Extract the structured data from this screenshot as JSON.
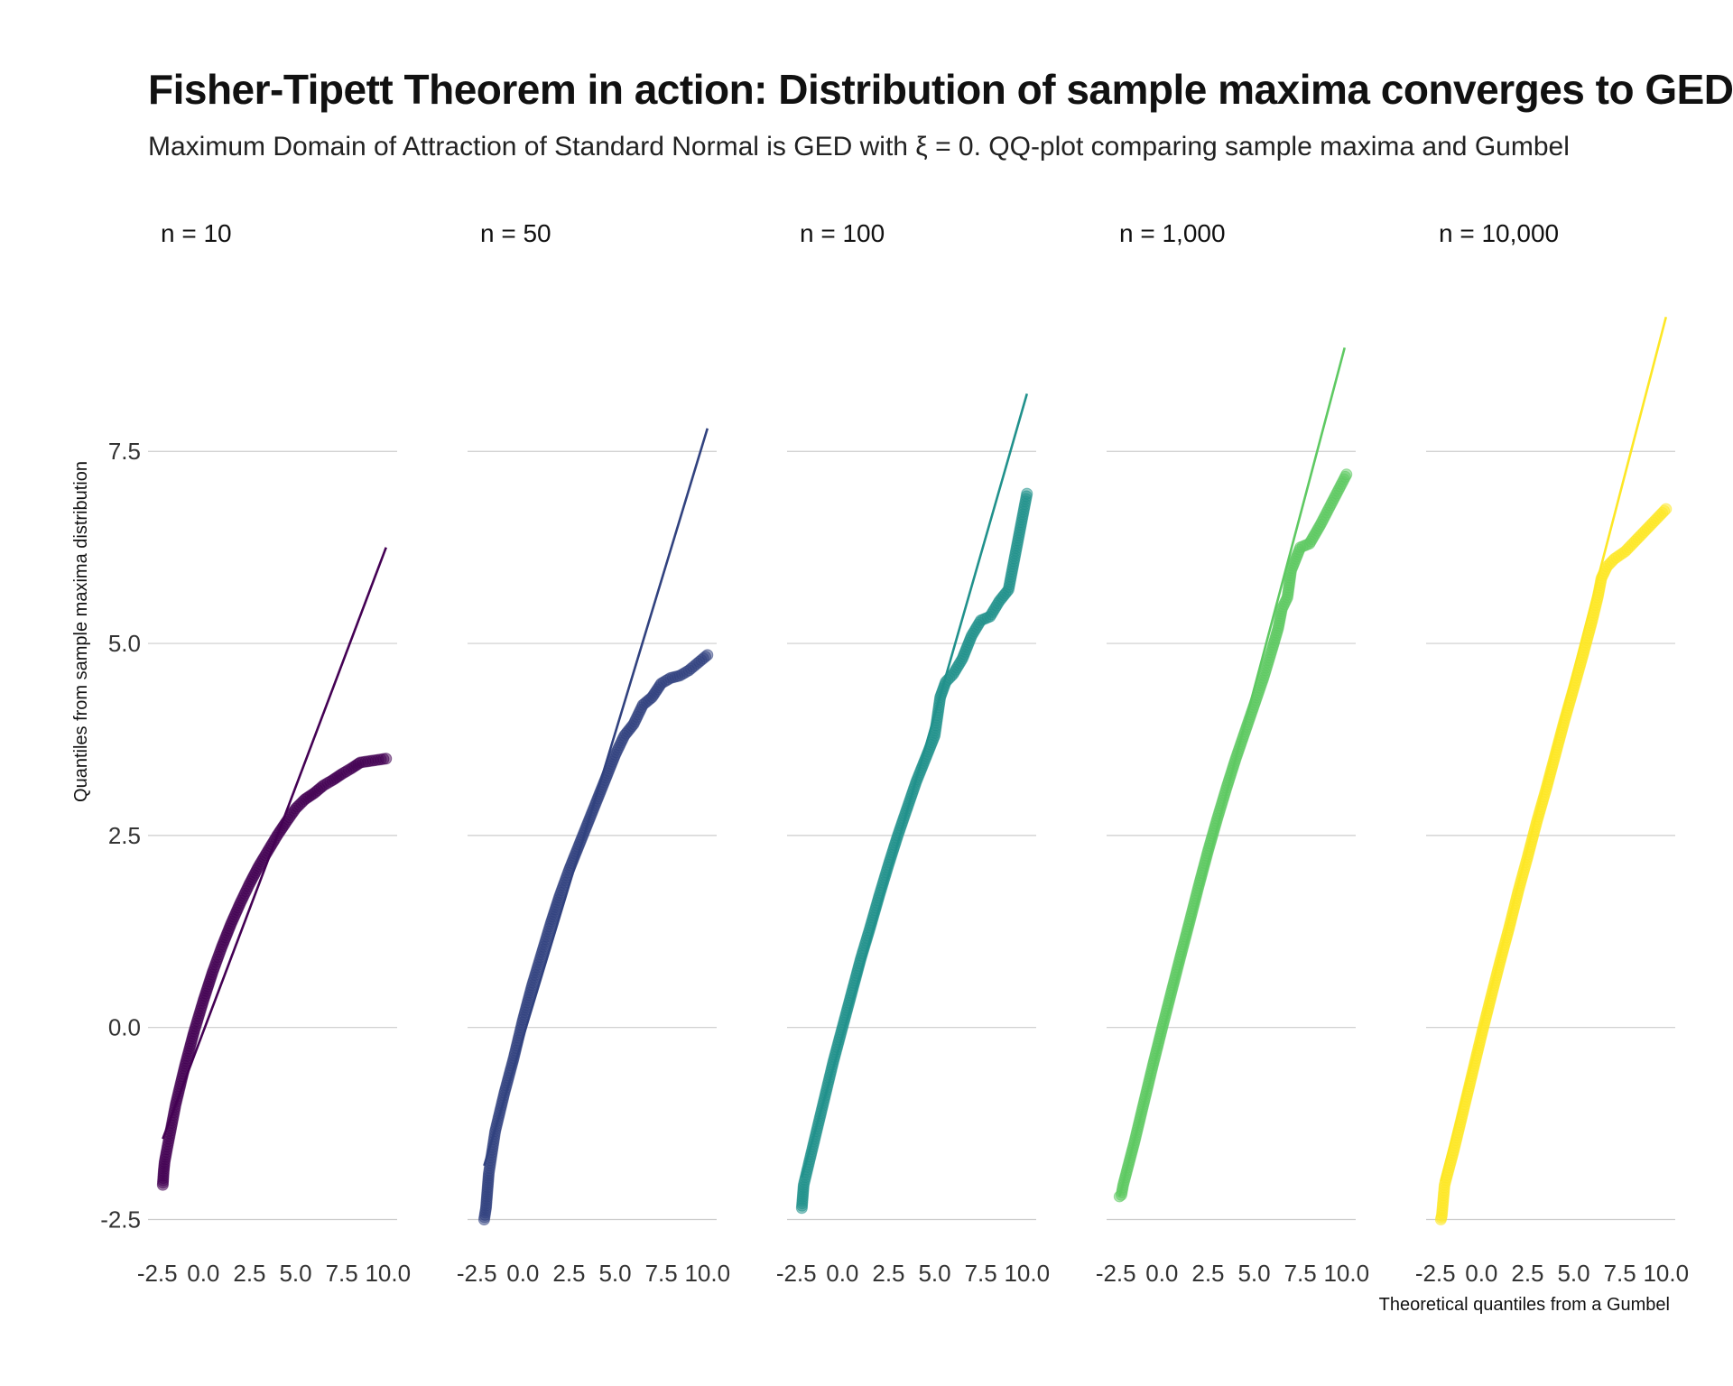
{
  "title": "Fisher-Tipett Theorem in action: Distribution of sample maxima converges to GED",
  "subtitle": "Maximum Domain of Attraction of Standard Normal is GED with ξ = 0. QQ-plot comparing sample maxima and Gumbel",
  "chart_data": {
    "type": "scatter",
    "xlabel": "Theoretical quantiles from a Gumbel",
    "ylabel": "Quantiles from sample maxima distribution",
    "xlim": [
      -3.0,
      10.5
    ],
    "ylim": [
      -2.6,
      9.5
    ],
    "x_ticks": [
      "-2.5",
      "0.0",
      "2.5",
      "5.0",
      "7.5",
      "10.0"
    ],
    "y_ticks": [
      "-2.5",
      "0.0",
      "2.5",
      "5.0",
      "7.5"
    ],
    "grid": "horizontal",
    "panels": [
      {
        "name": "n = 10",
        "color": "#440154",
        "line": {
          "x": [
            -2.2,
            9.9
          ],
          "y": [
            -1.45,
            6.25
          ]
        },
        "points": [
          [
            -2.2,
            -2.05
          ],
          [
            -2.15,
            -1.87
          ],
          [
            -2.1,
            -1.75
          ],
          [
            -2.0,
            -1.62
          ],
          [
            -1.5,
            -1.0
          ],
          [
            -1.0,
            -0.5
          ],
          [
            -0.5,
            -0.05
          ],
          [
            0.0,
            0.35
          ],
          [
            0.5,
            0.72
          ],
          [
            1.0,
            1.05
          ],
          [
            1.5,
            1.35
          ],
          [
            2.0,
            1.62
          ],
          [
            2.5,
            1.87
          ],
          [
            3.0,
            2.1
          ],
          [
            3.5,
            2.3
          ],
          [
            4.0,
            2.5
          ],
          [
            4.5,
            2.68
          ],
          [
            5.0,
            2.85
          ],
          [
            5.5,
            2.97
          ],
          [
            6.0,
            3.05
          ],
          [
            6.5,
            3.15
          ],
          [
            7.0,
            3.22
          ],
          [
            7.5,
            3.3
          ],
          [
            8.0,
            3.37
          ],
          [
            8.5,
            3.45
          ],
          [
            9.9,
            3.5
          ]
        ]
      },
      {
        "name": "n = 50",
        "color": "#31427f",
        "line": {
          "x": [
            -2.1,
            10.0
          ],
          "y": [
            -1.8,
            7.8
          ]
        },
        "points": [
          [
            -2.1,
            -2.5
          ],
          [
            -2.0,
            -2.35
          ],
          [
            -1.95,
            -2.2
          ],
          [
            -1.9,
            -2.05
          ],
          [
            -1.85,
            -1.9
          ],
          [
            -1.5,
            -1.35
          ],
          [
            -1.0,
            -0.85
          ],
          [
            -0.5,
            -0.4
          ],
          [
            0.0,
            0.1
          ],
          [
            0.5,
            0.55
          ],
          [
            1.0,
            0.95
          ],
          [
            1.5,
            1.35
          ],
          [
            2.0,
            1.72
          ],
          [
            2.5,
            2.05
          ],
          [
            3.0,
            2.35
          ],
          [
            3.5,
            2.65
          ],
          [
            4.0,
            2.95
          ],
          [
            4.5,
            3.25
          ],
          [
            5.0,
            3.55
          ],
          [
            5.5,
            3.8
          ],
          [
            6.0,
            3.95
          ],
          [
            6.5,
            4.2
          ],
          [
            7.0,
            4.3
          ],
          [
            7.5,
            4.48
          ],
          [
            8.0,
            4.55
          ],
          [
            8.5,
            4.58
          ],
          [
            9.0,
            4.65
          ],
          [
            10.0,
            4.85
          ]
        ]
      },
      {
        "name": "n = 100",
        "color": "#21918c",
        "line": {
          "x": [
            -2.2,
            10.0
          ],
          "y": [
            -1.95,
            8.25
          ]
        },
        "points": [
          [
            -2.2,
            -2.35
          ],
          [
            -2.15,
            -2.2
          ],
          [
            -2.1,
            -2.05
          ],
          [
            -2.0,
            -1.95
          ],
          [
            -1.5,
            -1.45
          ],
          [
            -1.0,
            -0.95
          ],
          [
            -0.5,
            -0.45
          ],
          [
            0.0,
            0.0
          ],
          [
            0.5,
            0.45
          ],
          [
            1.0,
            0.9
          ],
          [
            1.5,
            1.3
          ],
          [
            2.0,
            1.72
          ],
          [
            2.5,
            2.12
          ],
          [
            3.0,
            2.5
          ],
          [
            3.5,
            2.85
          ],
          [
            4.0,
            3.2
          ],
          [
            4.5,
            3.5
          ],
          [
            5.0,
            3.8
          ],
          [
            5.3,
            4.3
          ],
          [
            5.6,
            4.5
          ],
          [
            6.0,
            4.6
          ],
          [
            6.5,
            4.8
          ],
          [
            7.0,
            5.1
          ],
          [
            7.5,
            5.3
          ],
          [
            8.0,
            5.35
          ],
          [
            8.5,
            5.55
          ],
          [
            9.0,
            5.7
          ],
          [
            10.0,
            6.95
          ]
        ]
      },
      {
        "name": "n = 1,000",
        "color": "#5ec962",
        "line": {
          "x": [
            -2.3,
            9.9
          ],
          "y": [
            -2.2,
            8.85
          ]
        },
        "points": [
          [
            -2.3,
            -2.2
          ],
          [
            -2.2,
            -2.18
          ],
          [
            -2.1,
            -2.05
          ],
          [
            -1.5,
            -1.5
          ],
          [
            -1.0,
            -1.0
          ],
          [
            -0.5,
            -0.5
          ],
          [
            0.0,
            -0.02
          ],
          [
            0.5,
            0.45
          ],
          [
            1.0,
            0.92
          ],
          [
            1.5,
            1.38
          ],
          [
            2.0,
            1.85
          ],
          [
            2.5,
            2.3
          ],
          [
            3.0,
            2.72
          ],
          [
            3.5,
            3.12
          ],
          [
            4.0,
            3.5
          ],
          [
            4.5,
            3.85
          ],
          [
            5.0,
            4.2
          ],
          [
            5.5,
            4.55
          ],
          [
            6.0,
            4.95
          ],
          [
            6.3,
            5.2
          ],
          [
            6.5,
            5.45
          ],
          [
            6.8,
            5.6
          ],
          [
            7.0,
            5.95
          ],
          [
            7.5,
            6.25
          ],
          [
            8.0,
            6.3
          ],
          [
            8.6,
            6.55
          ],
          [
            10.0,
            7.2
          ]
        ]
      },
      {
        "name": "n = 10,000",
        "color": "#fde725",
        "line": {
          "x": [
            -2.2,
            10.0
          ],
          "y": [
            -2.0,
            9.25
          ]
        },
        "points": [
          [
            -2.2,
            -2.5
          ],
          [
            -2.15,
            -2.45
          ],
          [
            -2.0,
            -2.05
          ],
          [
            -1.5,
            -1.6
          ],
          [
            -1.0,
            -1.1
          ],
          [
            -0.5,
            -0.6
          ],
          [
            0.0,
            -0.1
          ],
          [
            0.5,
            0.38
          ],
          [
            1.0,
            0.85
          ],
          [
            1.5,
            1.3
          ],
          [
            2.0,
            1.78
          ],
          [
            2.5,
            2.22
          ],
          [
            3.0,
            2.68
          ],
          [
            3.5,
            3.1
          ],
          [
            4.0,
            3.55
          ],
          [
            4.5,
            4.0
          ],
          [
            5.0,
            4.42
          ],
          [
            5.5,
            4.85
          ],
          [
            6.0,
            5.3
          ],
          [
            6.3,
            5.6
          ],
          [
            6.5,
            5.85
          ],
          [
            6.8,
            6.0
          ],
          [
            7.2,
            6.1
          ],
          [
            7.8,
            6.2
          ],
          [
            8.2,
            6.3
          ],
          [
            8.8,
            6.45
          ],
          [
            10.0,
            6.75
          ]
        ]
      }
    ]
  }
}
